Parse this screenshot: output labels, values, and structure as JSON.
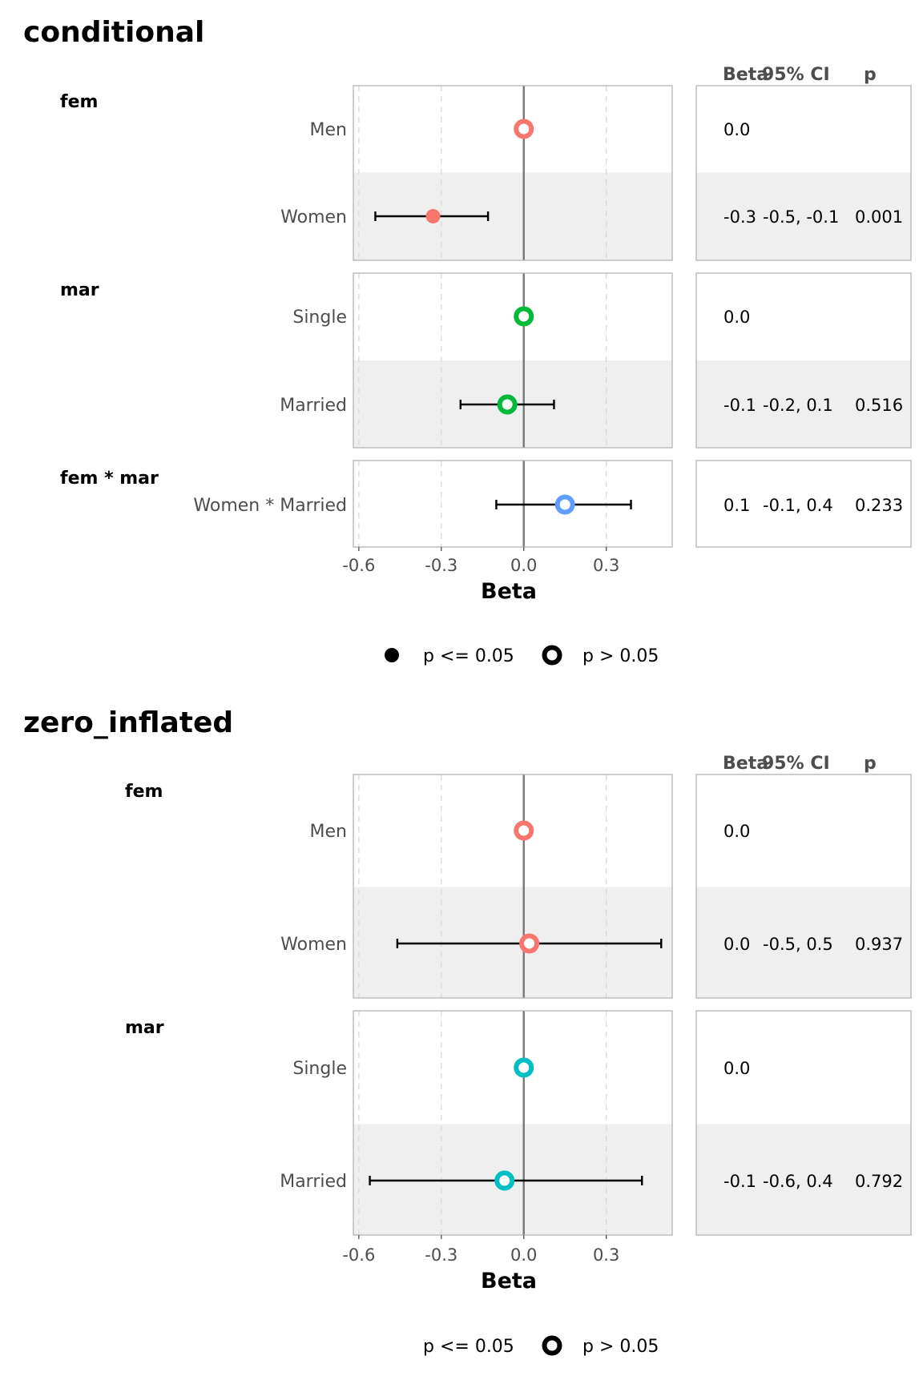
{
  "chart_data": [
    {
      "type": "forest",
      "title": "conditional",
      "xlabel": "Beta",
      "xlim": [
        -0.62,
        0.54
      ],
      "xticks": [
        -0.6,
        -0.3,
        0.0,
        0.3
      ],
      "xtick_labels": [
        "-0.6",
        "-0.3",
        "0.0",
        "0.3"
      ],
      "reference_line": 0,
      "table_headers": {
        "beta": "Beta",
        "ci": "95% CI",
        "p": "p"
      },
      "groups": [
        {
          "label": "fem",
          "color": "#F8766D",
          "rows": [
            {
              "term": "Men",
              "estimate": 0.0,
              "ci_low": null,
              "ci_high": null,
              "beta_text": "0.0",
              "ci_text": "",
              "p_text": "",
              "significant": false
            },
            {
              "term": "Women",
              "estimate": -0.33,
              "ci_low": -0.54,
              "ci_high": -0.13,
              "beta_text": "-0.3",
              "ci_text": "-0.5, -0.1",
              "p_text": "0.001",
              "significant": true
            }
          ]
        },
        {
          "label": "mar",
          "color": "#00BA38",
          "rows": [
            {
              "term": "Single",
              "estimate": 0.0,
              "ci_low": null,
              "ci_high": null,
              "beta_text": "0.0",
              "ci_text": "",
              "p_text": "",
              "significant": false
            },
            {
              "term": "Married",
              "estimate": -0.06,
              "ci_low": -0.23,
              "ci_high": 0.11,
              "beta_text": "-0.1",
              "ci_text": "-0.2, 0.1",
              "p_text": "0.516",
              "significant": false
            }
          ]
        },
        {
          "label": "fem * mar",
          "color": "#619CFF",
          "rows": [
            {
              "term": "Women * Married",
              "estimate": 0.15,
              "ci_low": -0.1,
              "ci_high": 0.39,
              "beta_text": "0.1",
              "ci_text": "-0.1, 0.4",
              "p_text": "0.233",
              "significant": false
            }
          ]
        }
      ],
      "legend": {
        "placement": "bottom",
        "items": [
          {
            "label": "p <= 0.05",
            "shape": "filled"
          },
          {
            "label": "p > 0.05",
            "shape": "hollow"
          }
        ]
      }
    },
    {
      "type": "forest",
      "title": "zero_inflated",
      "xlabel": "Beta",
      "xlim": [
        -0.62,
        0.54
      ],
      "xticks": [
        -0.6,
        -0.3,
        0.0,
        0.3
      ],
      "xtick_labels": [
        "-0.6",
        "-0.3",
        "0.0",
        "0.3"
      ],
      "reference_line": 0,
      "table_headers": {
        "beta": "Beta",
        "ci": "95% CI",
        "p": "p"
      },
      "groups": [
        {
          "label": "fem",
          "color": "#F8766D",
          "rows": [
            {
              "term": "Men",
              "estimate": 0.0,
              "ci_low": null,
              "ci_high": null,
              "beta_text": "0.0",
              "ci_text": "",
              "p_text": "",
              "significant": false
            },
            {
              "term": "Women",
              "estimate": 0.02,
              "ci_low": -0.46,
              "ci_high": 0.5,
              "beta_text": "0.0",
              "ci_text": "-0.5, 0.5",
              "p_text": "0.937",
              "significant": false
            }
          ]
        },
        {
          "label": "mar",
          "color": "#00BFC4",
          "rows": [
            {
              "term": "Single",
              "estimate": 0.0,
              "ci_low": null,
              "ci_high": null,
              "beta_text": "0.0",
              "ci_text": "",
              "p_text": "",
              "significant": false
            },
            {
              "term": "Married",
              "estimate": -0.07,
              "ci_low": -0.56,
              "ci_high": 0.43,
              "beta_text": "-0.1",
              "ci_text": "-0.6, 0.4",
              "p_text": "0.792",
              "significant": false
            }
          ]
        }
      ],
      "legend": {
        "placement": "bottom",
        "items": [
          {
            "label": "p <= 0.05",
            "shape": "none"
          },
          {
            "label": "p > 0.05",
            "shape": "hollow"
          }
        ]
      }
    }
  ]
}
